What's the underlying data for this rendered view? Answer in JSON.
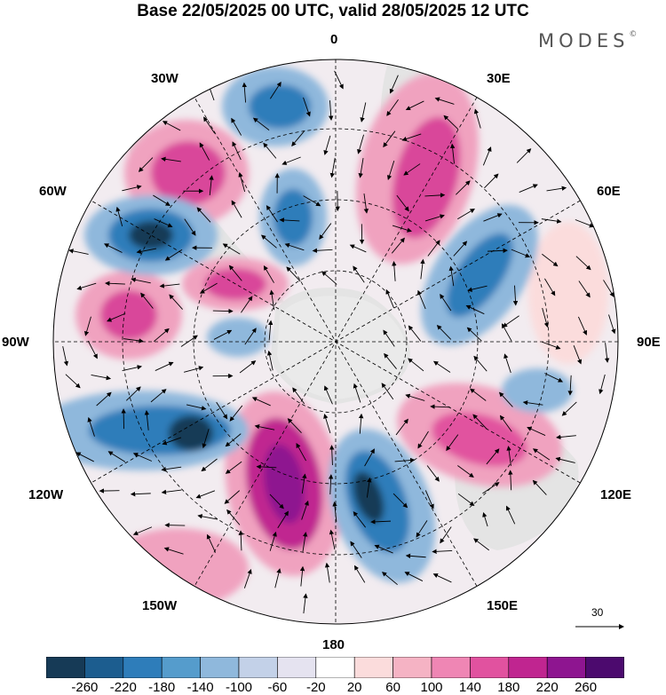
{
  "header": {
    "title": "Base 22/05/2025 00 UTC, valid 28/05/2025 12 UTC",
    "brand": "MODES"
  },
  "map": {
    "projection": "south-polar-stereographic",
    "longitude_labels": {
      "top": "0",
      "bottom": "180",
      "left": "90W",
      "right": "90E",
      "upper_left_1": "30W",
      "upper_left_2": "60W",
      "upper_right_1": "30E",
      "upper_right_2": "60E",
      "lower_left_1": "150W",
      "lower_left_2": "120W",
      "lower_right_1": "150E",
      "lower_right_2": "120E"
    },
    "reference_vector": "30",
    "field_colors": {
      "neg_strong": "#17465f",
      "neg": "#2f7bb3",
      "neg_light": "#8db4d9",
      "neg_faint": "#d9dcec",
      "pos_faint": "#f6d6dc",
      "pos_light": "#f0a2bf",
      "pos": "#d9479a",
      "pos_strong": "#8b1a8a",
      "land": "#e8e8e8"
    }
  },
  "colorbar": {
    "labels": [
      "-260",
      "-220",
      "-180",
      "-140",
      "-100",
      "-60",
      "-20",
      "20",
      "60",
      "100",
      "140",
      "180",
      "220",
      "260"
    ],
    "colors": [
      "#163a56",
      "#1c5d8f",
      "#2e7dba",
      "#559ccc",
      "#8fb8dc",
      "#c3d1e8",
      "#e5e3f0",
      "#ffffff",
      "#fbdcdc",
      "#f5b3c4",
      "#ef86b4",
      "#e1529f",
      "#c02590",
      "#8e1590",
      "#4c0a6e"
    ]
  }
}
